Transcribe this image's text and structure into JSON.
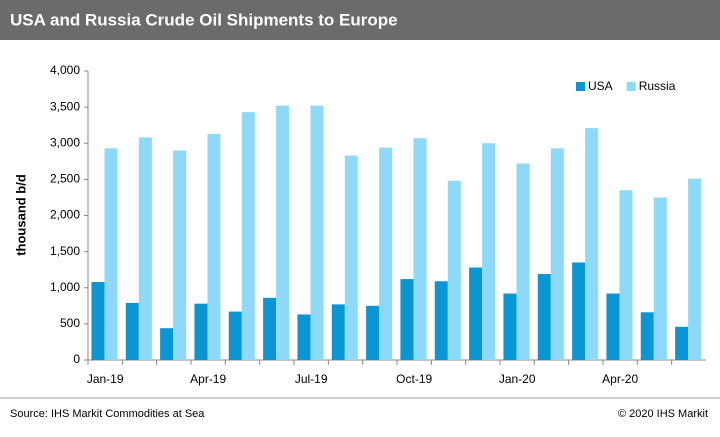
{
  "chart_data": {
    "type": "bar",
    "title": "USA and Russia Crude Oil Shipments to Europe",
    "y_label": "thousand b/d",
    "categories": [
      "Jan-19",
      null,
      null,
      "Apr-19",
      null,
      null,
      "Jul-19",
      null,
      null,
      "Oct-19",
      null,
      null,
      "Jan-20",
      null,
      null,
      "Apr-20",
      null,
      null
    ],
    "series": [
      {
        "name": "USA",
        "color": "#0a96d4",
        "values": [
          1080,
          790,
          440,
          780,
          670,
          860,
          630,
          770,
          750,
          1120,
          1090,
          1280,
          920,
          1190,
          1350,
          920,
          660,
          460
        ]
      },
      {
        "name": "Russia",
        "color": "#8ed8f8",
        "values": [
          2930,
          3080,
          2900,
          3130,
          3430,
          3520,
          3520,
          2830,
          2940,
          3070,
          2480,
          3000,
          2720,
          2930,
          3210,
          2350,
          2250,
          2510
        ]
      }
    ],
    "ylim": [
      0,
      4000
    ],
    "yticks": [
      0,
      500,
      {
        "value": 1000,
        "label": "1,000"
      },
      {
        "value": 1500,
        "label": "1,500"
      },
      {
        "value": 2000,
        "label": "2,000"
      },
      {
        "value": 2500,
        "label": "2,500"
      },
      {
        "value": 3000,
        "label": "3,000"
      },
      {
        "value": 3500,
        "label": "3,500"
      },
      {
        "value": 4000,
        "label": "4,000"
      }
    ],
    "legend": "top-right",
    "source": "Source: IHS Markit Commodities at Sea",
    "copyright": "© 2020 IHS Markit"
  }
}
